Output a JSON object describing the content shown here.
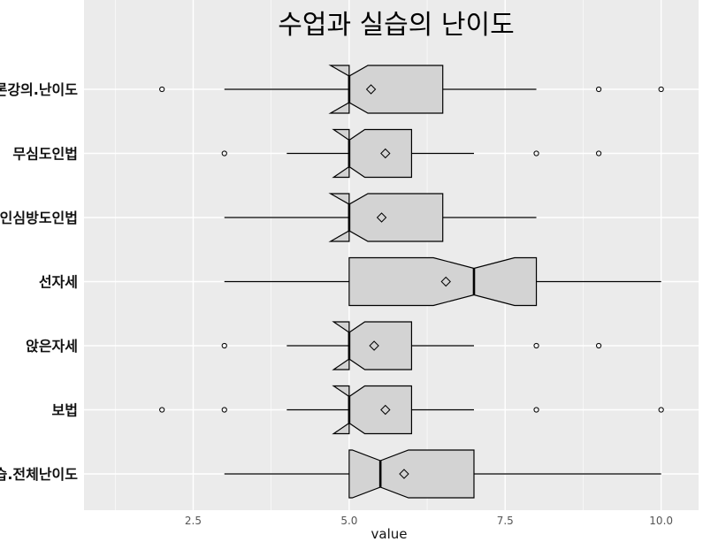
{
  "chart_data": {
    "type": "boxplot",
    "title": "수업과 실습의 난이도",
    "xlabel": "value",
    "ylabel": "",
    "xlim": [
      0.75,
      10.6
    ],
    "x_ticks": [
      2.5,
      5.0,
      7.5,
      10.0
    ],
    "x_tick_labels": [
      "2.5",
      "5.0",
      "7.5",
      "10.0"
    ],
    "grid": true,
    "notched": true,
    "mean_marker": "diamond",
    "colors": {
      "panel_background": "#ebebeb",
      "gridline": "#ffffff",
      "box_fill": "#d3d3d3",
      "outline": "#000000"
    },
    "categories": [
      "이론강의.난이도",
      "무심도인법",
      "활인심방도인법",
      "선자세",
      "앉은자세",
      "보법",
      "실습.전체난이도"
    ],
    "series": [
      {
        "category": "이론강의.난이도",
        "whisker_low": 3,
        "q1": 5,
        "median": 5,
        "q3": 6.5,
        "whisker_high": 8,
        "notch_low": 4.7,
        "notch_high": 5.3,
        "mean": 5.35,
        "outliers": [
          2,
          9,
          10
        ]
      },
      {
        "category": "무심도인법",
        "whisker_low": 4,
        "q1": 5,
        "median": 5,
        "q3": 6,
        "whisker_high": 7,
        "notch_low": 4.75,
        "notch_high": 5.25,
        "mean": 5.58,
        "outliers": [
          3,
          8,
          9
        ]
      },
      {
        "category": "활인심방도인법",
        "whisker_low": 3,
        "q1": 5,
        "median": 5,
        "q3": 6.5,
        "whisker_high": 8,
        "notch_low": 4.7,
        "notch_high": 5.3,
        "mean": 5.52,
        "outliers": []
      },
      {
        "category": "선자세",
        "whisker_low": 3,
        "q1": 5,
        "median": 7,
        "q3": 8,
        "whisker_high": 10,
        "notch_low": 6.35,
        "notch_high": 7.65,
        "mean": 6.55,
        "outliers": []
      },
      {
        "category": "앉은자세",
        "whisker_low": 4,
        "q1": 5,
        "median": 5,
        "q3": 6,
        "whisker_high": 7,
        "notch_low": 4.75,
        "notch_high": 5.25,
        "mean": 5.4,
        "outliers": [
          3,
          8,
          9
        ]
      },
      {
        "category": "보법",
        "whisker_low": 4,
        "q1": 5,
        "median": 5,
        "q3": 6,
        "whisker_high": 7,
        "notch_low": 4.75,
        "notch_high": 5.25,
        "mean": 5.58,
        "outliers": [
          2,
          3,
          8,
          10
        ]
      },
      {
        "category": "실습.전체난이도",
        "whisker_low": 3,
        "q1": 5,
        "median": 5.5,
        "q3": 7,
        "whisker_high": 10,
        "notch_low": 5.05,
        "notch_high": 5.95,
        "mean": 5.88,
        "outliers": []
      }
    ]
  }
}
